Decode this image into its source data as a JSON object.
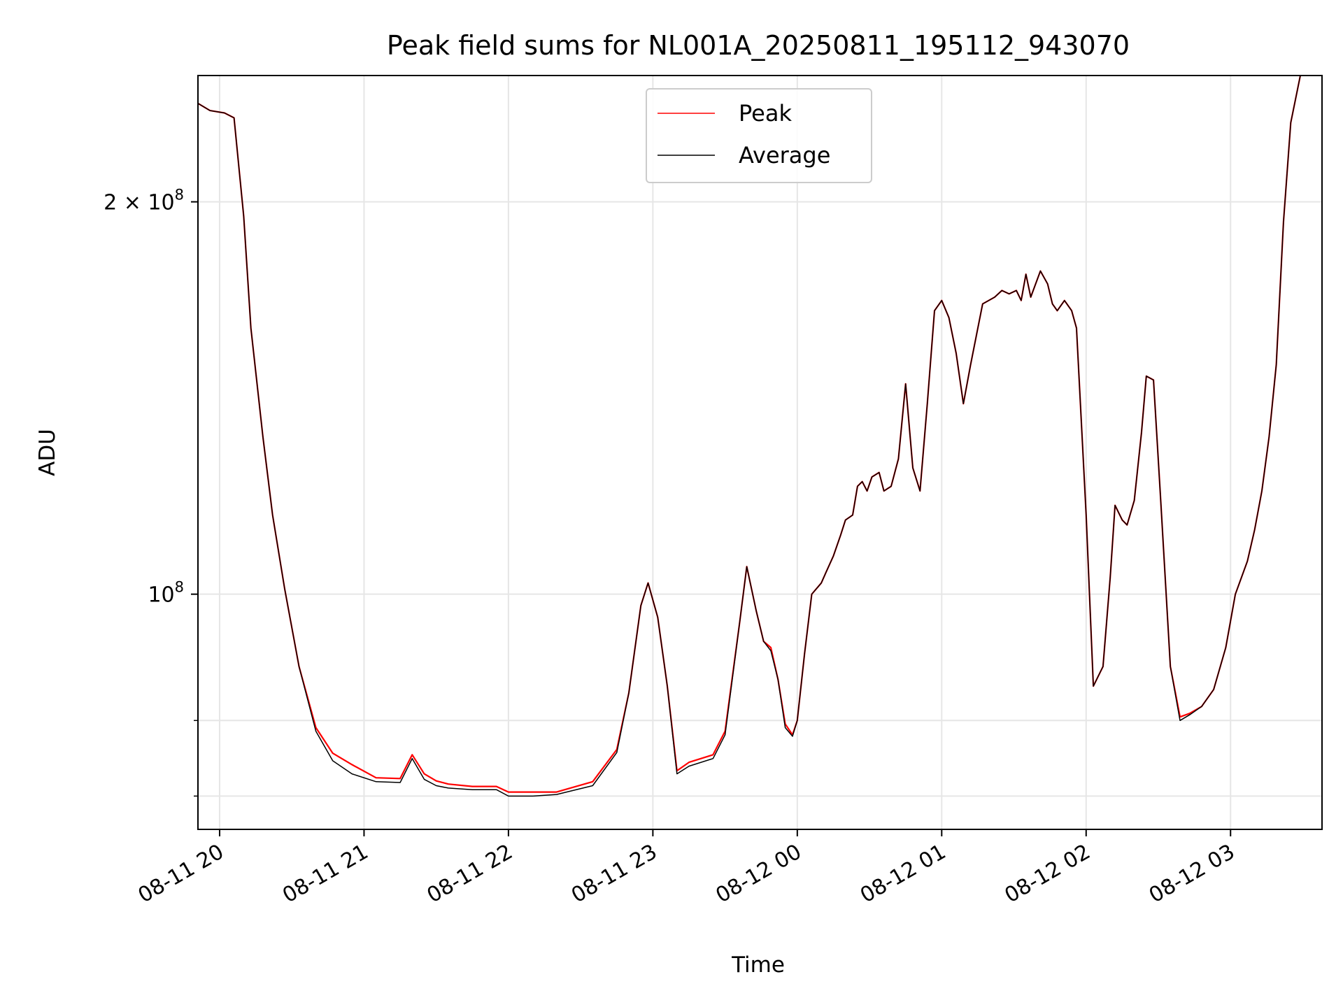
{
  "chart_data": {
    "type": "line",
    "title": "Peak field sums for NL001A_20250811_195112_943070",
    "xlabel": "Time",
    "ylabel": "ADU",
    "yscale": "log",
    "ylim": [
      66000000,
      250000000
    ],
    "xlim": [
      "2025-08-11 19:51",
      "2025-08-12 03:38"
    ],
    "grid": true,
    "legend_position": "top-center",
    "x_ticks": [
      "08-11 20",
      "08-11 21",
      "08-11 22",
      "08-11 23",
      "08-12 00",
      "08-12 01",
      "08-12 02",
      "08-12 03"
    ],
    "y_major_ticks": [
      {
        "value": 100000000,
        "label_base": "10",
        "label_exp": "8"
      },
      {
        "value": 200000000,
        "label_base": "2 × 10",
        "label_exp": "8"
      }
    ],
    "y_minor_ticks": [
      70000000,
      80000000
    ],
    "series": [
      {
        "name": "Peak",
        "color": "#ff0000",
        "x": [
          "2025-08-11 19:51",
          "2025-08-11 19:56",
          "2025-08-11 20:02",
          "2025-08-11 20:06",
          "2025-08-11 20:10",
          "2025-08-11 20:13",
          "2025-08-11 20:18",
          "2025-08-11 20:22",
          "2025-08-11 20:27",
          "2025-08-11 20:33",
          "2025-08-11 20:40",
          "2025-08-11 20:47",
          "2025-08-11 20:55",
          "2025-08-11 21:05",
          "2025-08-11 21:15",
          "2025-08-11 21:20",
          "2025-08-11 21:25",
          "2025-08-11 21:30",
          "2025-08-11 21:35",
          "2025-08-11 21:45",
          "2025-08-11 21:55",
          "2025-08-11 22:00",
          "2025-08-11 22:10",
          "2025-08-11 22:20",
          "2025-08-11 22:35",
          "2025-08-11 22:45",
          "2025-08-11 22:50",
          "2025-08-11 22:55",
          "2025-08-11 22:58",
          "2025-08-11 23:02",
          "2025-08-11 23:06",
          "2025-08-11 23:10",
          "2025-08-11 23:15",
          "2025-08-11 23:25",
          "2025-08-11 23:30",
          "2025-08-11 23:36",
          "2025-08-11 23:39",
          "2025-08-11 23:43",
          "2025-08-11 23:46",
          "2025-08-11 23:49",
          "2025-08-11 23:52",
          "2025-08-11 23:55",
          "2025-08-11 23:58",
          "2025-08-12 00:00",
          "2025-08-12 00:03",
          "2025-08-12 00:06",
          "2025-08-12 00:10",
          "2025-08-12 00:12",
          "2025-08-12 00:15",
          "2025-08-12 00:18",
          "2025-08-12 00:20",
          "2025-08-12 00:23",
          "2025-08-12 00:25",
          "2025-08-12 00:27",
          "2025-08-12 00:29",
          "2025-08-12 00:31",
          "2025-08-12 00:34",
          "2025-08-12 00:36",
          "2025-08-12 00:39",
          "2025-08-12 00:42",
          "2025-08-12 00:45",
          "2025-08-12 00:48",
          "2025-08-12 00:51",
          "2025-08-12 00:54",
          "2025-08-12 00:57",
          "2025-08-12 01:00",
          "2025-08-12 01:03",
          "2025-08-12 01:06",
          "2025-08-12 01:09",
          "2025-08-12 01:12",
          "2025-08-12 01:17",
          "2025-08-12 01:22",
          "2025-08-12 01:25",
          "2025-08-12 01:28",
          "2025-08-12 01:31",
          "2025-08-12 01:33",
          "2025-08-12 01:35",
          "2025-08-12 01:37",
          "2025-08-12 01:41",
          "2025-08-12 01:44",
          "2025-08-12 01:46",
          "2025-08-12 01:48",
          "2025-08-12 01:51",
          "2025-08-12 01:54",
          "2025-08-12 01:56",
          "2025-08-12 02:00",
          "2025-08-12 02:03",
          "2025-08-12 02:07",
          "2025-08-12 02:10",
          "2025-08-12 02:12",
          "2025-08-12 02:15",
          "2025-08-12 02:17",
          "2025-08-12 02:20",
          "2025-08-12 02:23",
          "2025-08-12 02:25",
          "2025-08-12 02:28",
          "2025-08-12 02:31",
          "2025-08-12 02:35",
          "2025-08-12 02:39",
          "2025-08-12 02:43",
          "2025-08-12 02:48",
          "2025-08-12 02:53",
          "2025-08-12 02:58",
          "2025-08-12 03:02",
          "2025-08-12 03:07",
          "2025-08-12 03:10",
          "2025-08-12 03:13",
          "2025-08-12 03:16",
          "2025-08-12 03:19",
          "2025-08-12 03:22",
          "2025-08-12 03:25",
          "2025-08-12 03:29"
        ],
        "y": [
          238000000,
          235000000,
          234000000,
          232000000,
          195000000,
          160000000,
          132000000,
          115000000,
          101000000,
          88000000,
          79000000,
          75500000,
          74000000,
          72300000,
          72200000,
          75300000,
          72800000,
          71900000,
          71500000,
          71200000,
          71200000,
          70500000,
          70500000,
          70500000,
          71800000,
          76000000,
          84000000,
          98000000,
          102000000,
          96000000,
          85000000,
          73200000,
          74300000,
          75300000,
          78500000,
          95000000,
          105000000,
          97000000,
          92000000,
          91000000,
          86000000,
          79500000,
          78000000,
          80000000,
          90000000,
          100000000,
          102000000,
          104000000,
          107000000,
          111000000,
          114000000,
          115000000,
          121000000,
          122000000,
          120000000,
          123000000,
          124000000,
          120000000,
          121000000,
          127000000,
          145000000,
          125000000,
          120000000,
          140000000,
          165000000,
          168000000,
          163000000,
          153000000,
          140000000,
          150000000,
          167000000,
          169000000,
          171000000,
          170000000,
          171000000,
          168000000,
          176000000,
          169000000,
          177000000,
          173000000,
          167000000,
          165000000,
          168000000,
          165000000,
          160000000,
          115000000,
          85000000,
          88000000,
          103000000,
          117000000,
          114000000,
          113000000,
          118000000,
          133000000,
          147000000,
          146000000,
          118000000,
          88000000,
          80500000,
          81000000,
          82000000,
          84500000,
          91000000,
          100000000,
          106000000,
          112000000,
          120000000,
          132000000,
          150000000,
          193000000,
          230000000,
          250000000
        ]
      },
      {
        "name": "Average",
        "color": "#000000",
        "x": [
          "2025-08-11 19:51",
          "2025-08-11 19:56",
          "2025-08-11 20:02",
          "2025-08-11 20:06",
          "2025-08-11 20:10",
          "2025-08-11 20:13",
          "2025-08-11 20:18",
          "2025-08-11 20:22",
          "2025-08-11 20:27",
          "2025-08-11 20:33",
          "2025-08-11 20:40",
          "2025-08-11 20:47",
          "2025-08-11 20:55",
          "2025-08-11 21:05",
          "2025-08-11 21:15",
          "2025-08-11 21:20",
          "2025-08-11 21:25",
          "2025-08-11 21:30",
          "2025-08-11 21:35",
          "2025-08-11 21:45",
          "2025-08-11 21:55",
          "2025-08-11 22:00",
          "2025-08-11 22:10",
          "2025-08-11 22:20",
          "2025-08-11 22:35",
          "2025-08-11 22:45",
          "2025-08-11 22:50",
          "2025-08-11 22:55",
          "2025-08-11 22:58",
          "2025-08-11 23:02",
          "2025-08-11 23:06",
          "2025-08-11 23:10",
          "2025-08-11 23:15",
          "2025-08-11 23:25",
          "2025-08-11 23:30",
          "2025-08-11 23:36",
          "2025-08-11 23:39",
          "2025-08-11 23:43",
          "2025-08-11 23:46",
          "2025-08-11 23:49",
          "2025-08-11 23:52",
          "2025-08-11 23:55",
          "2025-08-11 23:58",
          "2025-08-12 00:00",
          "2025-08-12 00:03",
          "2025-08-12 00:06",
          "2025-08-12 00:10",
          "2025-08-12 00:12",
          "2025-08-12 00:15",
          "2025-08-12 00:18",
          "2025-08-12 00:20",
          "2025-08-12 00:23",
          "2025-08-12 00:25",
          "2025-08-12 00:27",
          "2025-08-12 00:29",
          "2025-08-12 00:31",
          "2025-08-12 00:34",
          "2025-08-12 00:36",
          "2025-08-12 00:39",
          "2025-08-12 00:42",
          "2025-08-12 00:45",
          "2025-08-12 00:48",
          "2025-08-12 00:51",
          "2025-08-12 00:54",
          "2025-08-12 00:57",
          "2025-08-12 01:00",
          "2025-08-12 01:03",
          "2025-08-12 01:06",
          "2025-08-12 01:09",
          "2025-08-12 01:12",
          "2025-08-12 01:17",
          "2025-08-12 01:22",
          "2025-08-12 01:25",
          "2025-08-12 01:28",
          "2025-08-12 01:31",
          "2025-08-12 01:33",
          "2025-08-12 01:35",
          "2025-08-12 01:37",
          "2025-08-12 01:41",
          "2025-08-12 01:44",
          "2025-08-12 01:46",
          "2025-08-12 01:48",
          "2025-08-12 01:51",
          "2025-08-12 01:54",
          "2025-08-12 01:56",
          "2025-08-12 02:00",
          "2025-08-12 02:03",
          "2025-08-12 02:07",
          "2025-08-12 02:10",
          "2025-08-12 02:12",
          "2025-08-12 02:15",
          "2025-08-12 02:17",
          "2025-08-12 02:20",
          "2025-08-12 02:23",
          "2025-08-12 02:25",
          "2025-08-12 02:28",
          "2025-08-12 02:31",
          "2025-08-12 02:35",
          "2025-08-12 02:39",
          "2025-08-12 02:43",
          "2025-08-12 02:48",
          "2025-08-12 02:53",
          "2025-08-12 02:58",
          "2025-08-12 03:02",
          "2025-08-12 03:07",
          "2025-08-12 03:10",
          "2025-08-12 03:13",
          "2025-08-12 03:16",
          "2025-08-12 03:19",
          "2025-08-12 03:22",
          "2025-08-12 03:25",
          "2025-08-12 03:29"
        ],
        "y": [
          238000000,
          235000000,
          234000000,
          232000000,
          195000000,
          160000000,
          132000000,
          115000000,
          101000000,
          88000000,
          78500000,
          74500000,
          72800000,
          71800000,
          71700000,
          74800000,
          72100000,
          71300000,
          71000000,
          70800000,
          70800000,
          70000000,
          70000000,
          70200000,
          71300000,
          75600000,
          84000000,
          98000000,
          102000000,
          96000000,
          85000000,
          72800000,
          73800000,
          74800000,
          78000000,
          95000000,
          105000000,
          97000000,
          92000000,
          90500000,
          86000000,
          79000000,
          77800000,
          80000000,
          90000000,
          100000000,
          102000000,
          104000000,
          107000000,
          111000000,
          114000000,
          115000000,
          121000000,
          122000000,
          120000000,
          123000000,
          124000000,
          120000000,
          121000000,
          127000000,
          145000000,
          125000000,
          120000000,
          140000000,
          165000000,
          168000000,
          163000000,
          153000000,
          140000000,
          150000000,
          167000000,
          169000000,
          171000000,
          170000000,
          171000000,
          168000000,
          176000000,
          169000000,
          177000000,
          173000000,
          167000000,
          165000000,
          168000000,
          165000000,
          160000000,
          115000000,
          85000000,
          88000000,
          103000000,
          117000000,
          114000000,
          113000000,
          118000000,
          133000000,
          147000000,
          146000000,
          118000000,
          88000000,
          80000000,
          80800000,
          82000000,
          84500000,
          91000000,
          100000000,
          106000000,
          112000000,
          120000000,
          132000000,
          150000000,
          193000000,
          230000000,
          250000000
        ]
      }
    ]
  }
}
